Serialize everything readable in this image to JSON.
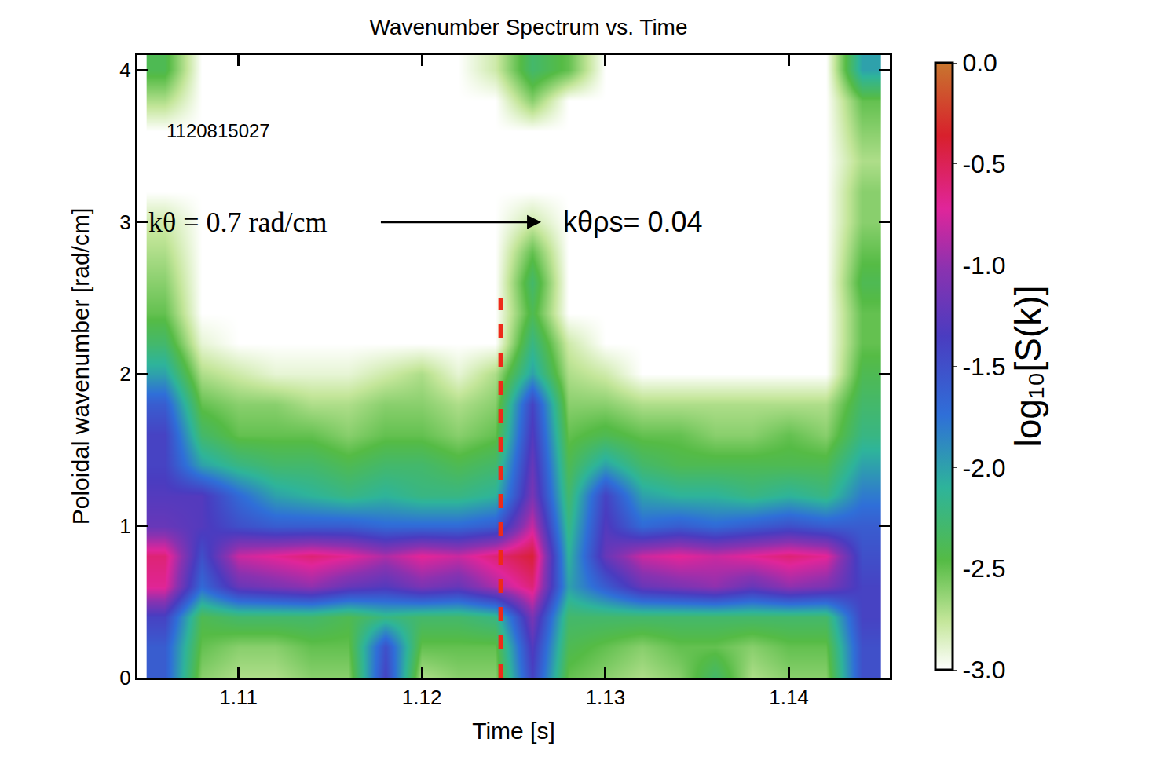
{
  "chart_data": {
    "type": "heatmap",
    "title": "Wavenumber Spectrum vs. Time",
    "x_label": "Time [s]",
    "y_label": "Poloidal wavenumber [rad/cm]",
    "x": [
      1.106,
      1.108,
      1.11,
      1.112,
      1.114,
      1.116,
      1.118,
      1.12,
      1.122,
      1.124,
      1.126,
      1.128,
      1.13,
      1.132,
      1.134,
      1.136,
      1.138,
      1.14,
      1.142,
      1.144
    ],
    "y": [
      0,
      0.2,
      0.4,
      0.6,
      0.8,
      1.0,
      1.2,
      1.4,
      1.6,
      1.8,
      2.0,
      2.2,
      2.4,
      2.6,
      2.8,
      3.0,
      3.2,
      3.4,
      3.6,
      3.8,
      4.0
    ],
    "z": [
      [
        -1.6,
        -2.6,
        -2.7,
        -2.7,
        -2.6,
        -2.6,
        -1.4,
        -2.7,
        -2.6,
        -2.6,
        -1.4,
        -2.5,
        -2.6,
        -2.7,
        -2.6,
        -2.3,
        -2.7,
        -2.6,
        -2.6,
        -1.5
      ],
      [
        -1.6,
        -2.5,
        -2.6,
        -2.6,
        -2.5,
        -2.5,
        -1.5,
        -2.5,
        -2.5,
        -2.5,
        -1.3,
        -2.4,
        -2.5,
        -2.6,
        -2.5,
        -2.5,
        -2.6,
        -2.5,
        -2.5,
        -1.5
      ],
      [
        -1.4,
        -2.4,
        -2.3,
        -2.3,
        -2.3,
        -2.4,
        -2.2,
        -2.3,
        -2.3,
        -2.2,
        -1.1,
        -2.3,
        -2.3,
        -2.3,
        -2.3,
        -2.3,
        -2.3,
        -2.3,
        -2.3,
        -1.4
      ],
      [
        -0.7,
        -1.7,
        -1.2,
        -1.1,
        -1.0,
        -1.2,
        -1.3,
        -1.1,
        -1.2,
        -0.9,
        -0.6,
        -2.0,
        -1.6,
        -1.2,
        -1.1,
        -1.0,
        -1.2,
        -1.0,
        -1.1,
        -1.4
      ],
      [
        -0.6,
        -1.5,
        -0.8,
        -0.7,
        -0.6,
        -0.7,
        -0.9,
        -0.7,
        -0.8,
        -0.6,
        -0.4,
        -2.1,
        -1.2,
        -0.8,
        -0.7,
        -0.8,
        -0.7,
        -0.6,
        -0.7,
        -1.5
      ],
      [
        -1.2,
        -1.3,
        -1.5,
        -1.6,
        -1.6,
        -1.6,
        -1.7,
        -1.7,
        -1.7,
        -1.6,
        -0.8,
        -2.2,
        -1.3,
        -1.7,
        -1.6,
        -1.7,
        -1.6,
        -1.5,
        -1.6,
        -1.6
      ],
      [
        -1.3,
        -1.3,
        -1.7,
        -2.0,
        -2.1,
        -2.2,
        -2.1,
        -2.2,
        -2.2,
        -2.1,
        -1.1,
        -2.3,
        -1.4,
        -2.0,
        -2.1,
        -2.1,
        -2.2,
        -2.1,
        -2.2,
        -1.8
      ],
      [
        -1.4,
        -2.0,
        -2.2,
        -2.3,
        -2.3,
        -2.4,
        -2.3,
        -2.3,
        -2.4,
        -2.3,
        -1.2,
        -2.4,
        -2.0,
        -2.3,
        -2.4,
        -2.4,
        -2.4,
        -2.4,
        -2.4,
        -2.0
      ],
      [
        -1.4,
        -2.3,
        -2.5,
        -2.5,
        -2.5,
        -2.6,
        -2.5,
        -2.5,
        -2.6,
        -2.5,
        -1.3,
        -2.5,
        -2.4,
        -2.5,
        -2.5,
        -2.6,
        -2.6,
        -2.5,
        -2.6,
        -2.2
      ],
      [
        -1.6,
        -2.5,
        -2.6,
        -2.6,
        -2.7,
        -2.7,
        -2.6,
        -2.6,
        -2.7,
        -2.6,
        -1.4,
        -2.6,
        -2.6,
        -2.7,
        -2.7,
        -2.7,
        -2.7,
        -2.7,
        -2.7,
        -2.3
      ],
      [
        -2.0,
        -2.7,
        -2.8,
        -2.9,
        -2.9,
        -2.9,
        -2.8,
        -2.7,
        -2.9,
        -2.7,
        -2.0,
        -2.7,
        -2.8,
        -3,
        -3,
        -3,
        -3,
        -3,
        -3,
        -2.4
      ],
      [
        -2.3,
        -2.9,
        -3,
        -3,
        -3,
        -3,
        -3,
        -3,
        -3,
        -3,
        -2.2,
        -2.8,
        -3,
        -3,
        -3,
        -3,
        -3,
        -3,
        -3,
        -2.5
      ],
      [
        -2.5,
        -3,
        -3,
        -3,
        -3,
        -3,
        -3,
        -3,
        -3,
        -3,
        -2.4,
        -3,
        -3,
        -3,
        -3,
        -3,
        -3,
        -3,
        -3,
        -2.5
      ],
      [
        -2.6,
        -3,
        -3,
        -3,
        -3,
        -3,
        -3,
        -3,
        -3,
        -3,
        -2.3,
        -3,
        -3,
        -3,
        -3,
        -3,
        -3,
        -3,
        -3,
        -2.4
      ],
      [
        -2.7,
        -3,
        -3,
        -3,
        -3,
        -3,
        -3,
        -3,
        -3,
        -3,
        -2.5,
        -3,
        -3,
        -3,
        -3,
        -3,
        -3,
        -3,
        -3,
        -2.5
      ],
      [
        -2.8,
        -3,
        -3,
        -3,
        -3,
        -3,
        -3,
        -3,
        -3,
        -3,
        -2.8,
        -3,
        -3,
        -3,
        -3,
        -3,
        -3,
        -3,
        -3,
        -2.6
      ],
      [
        -3,
        -3,
        -3,
        -3,
        -3,
        -3,
        -3,
        -3,
        -3,
        -3,
        -3,
        -3,
        -3,
        -3,
        -3,
        -3,
        -3,
        -3,
        -3,
        -2.6
      ],
      [
        -3,
        -3,
        -3,
        -3,
        -3,
        -3,
        -3,
        -3,
        -3,
        -3,
        -3,
        -3,
        -3,
        -3,
        -3,
        -3,
        -3,
        -3,
        -3,
        -2.7
      ],
      [
        -3,
        -3,
        -3,
        -3,
        -3,
        -3,
        -3,
        -3,
        -3,
        -3,
        -3,
        -3,
        -3,
        -3,
        -3,
        -3,
        -3,
        -3,
        -3,
        -2.6
      ],
      [
        -2.7,
        -3,
        -3,
        -3,
        -3,
        -3,
        -3,
        -3,
        -3,
        -3,
        -2.6,
        -3,
        -3,
        -3,
        -3,
        -3,
        -3,
        -3,
        -3,
        -2.5
      ],
      [
        -2.4,
        -3,
        -3,
        -3,
        -3,
        -3,
        -3,
        -3,
        -3,
        -2.8,
        -2.3,
        -2.5,
        -3,
        -3,
        -3,
        -3,
        -3,
        -3,
        -3,
        -2.0
      ]
    ],
    "xlim": [
      1.1045,
      1.1455
    ],
    "ylim": [
      0,
      4.1
    ],
    "xticks": [
      1.11,
      1.12,
      1.13,
      1.14
    ],
    "yticks": [
      0,
      1,
      2,
      3,
      4
    ],
    "grid": false,
    "colorbar": {
      "title": "log₁₀[S(k)]",
      "range": [
        -3,
        0
      ],
      "ticks": [
        {
          "value": 0,
          "label": "0.0"
        },
        {
          "value": -0.5,
          "label": "-0.5"
        },
        {
          "value": -1,
          "label": "-1.0"
        },
        {
          "value": -1.5,
          "label": "-1.5"
        },
        {
          "value": -2,
          "label": "-2.0"
        },
        {
          "value": -2.5,
          "label": "-2.5"
        },
        {
          "value": -3,
          "label": "-3.0"
        }
      ]
    },
    "annotations": [
      {
        "text": "1120815027",
        "x": 1.106,
        "y": 3.6
      },
      {
        "text": "kθ = 0.7 rad/cm",
        "x": 1.105,
        "y": 3.0
      },
      {
        "text": "kθρs= 0.04",
        "x": 1.1276,
        "y": 3.0
      }
    ],
    "arrow": {
      "from": [
        1.1177,
        3.0
      ],
      "to": [
        1.1265,
        3.0
      ]
    },
    "vline": {
      "x": 1.1243,
      "y": [
        0,
        2.5
      ],
      "color": "#ee2a1a"
    }
  }
}
